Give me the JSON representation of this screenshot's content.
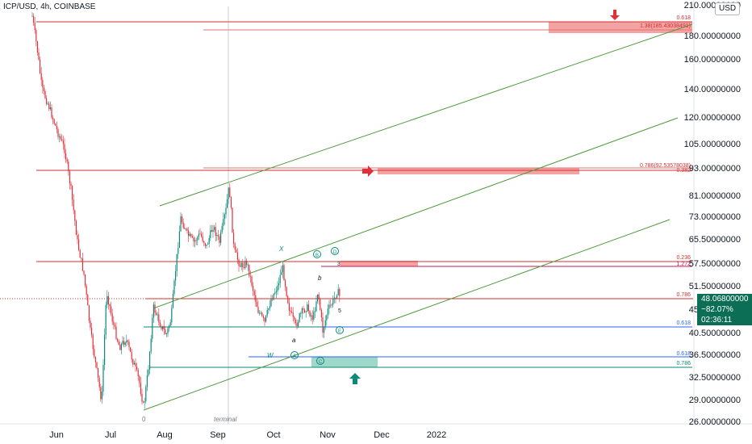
{
  "header": {
    "symbol_title": "ICP/USD, 4h, COINBASE",
    "currency": "USD"
  },
  "price_tag": {
    "price": "48.06800000",
    "change": "−82.07%",
    "countdown": "02:36:11"
  },
  "chart_data": {
    "type": "candlestick",
    "x_labels": [
      "Jun",
      "Jul",
      "Aug",
      "Sep",
      "Oct",
      "Nov",
      "Dec",
      "2022"
    ],
    "y_ticks": [
      "210.00000000",
      "180.00000000",
      "160.00000000",
      "140.00000000",
      "120.00000000",
      "105.00000000",
      "93.00000000",
      "81.00000000",
      "73.00000000",
      "65.50000000",
      "57.50000000",
      "51.50000000",
      "45.50000000",
      "40.50000000",
      "36.50000000",
      "32.50000000",
      "29.00000000",
      "26.00000000"
    ],
    "y_scale": "log",
    "current_price": 48.068,
    "colors": {
      "up": "#0b8a7a",
      "down": "#e0303a",
      "fib_red": "#d32f2f",
      "fib_blue": "#2962ff",
      "fib_teal": "#0b8a7a",
      "channel": "#4f9a3e",
      "zone_red": "#f4a3a3",
      "zone_teal": "#9ed8c8"
    },
    "fib_levels": [
      {
        "ratio": "0.618",
        "detail": "1.38(185.43038491)"
      },
      {
        "ratio": "0.786(92.53578038)",
        "detail": "0.382"
      },
      {
        "ratio": "0.236",
        "detail": "1.272"
      },
      {
        "ratio": "0.786"
      },
      {
        "ratio": "0.618",
        "color": "blue"
      },
      {
        "ratio": "0.618",
        "color": "blue",
        "lower": true
      },
      {
        "ratio": "0.786",
        "color": "teal"
      }
    ],
    "wave_labels": [
      "X",
      "B",
      "D",
      "b",
      "a",
      "E",
      "W",
      "A",
      "C",
      "0",
      "3",
      "5"
    ],
    "annotation": "terminal"
  }
}
